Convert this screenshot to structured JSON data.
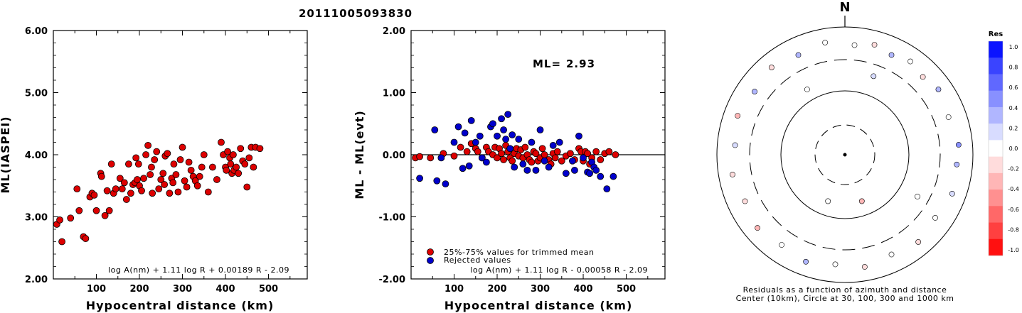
{
  "event_id": "20111005093830",
  "chart_data": [
    {
      "type": "scatter",
      "ylabel": "ML(IASPEI)",
      "xlabel": "Hypocentral distance (km)",
      "xlim": [
        0,
        590
      ],
      "ylim": [
        2.0,
        6.0
      ],
      "xticks": [
        "100",
        "200",
        "300",
        "400",
        "500"
      ],
      "yticks": [
        "2.00",
        "3.00",
        "4.00",
        "5.00",
        "6.00"
      ],
      "formula": "log A(nm) + 1.11 log R + 0.00189 R - 2.09",
      "color": "#dd0000",
      "series": [
        {
          "x": [
            8,
            15,
            20,
            40,
            55,
            60,
            70,
            75,
            85,
            90,
            95,
            100,
            110,
            112,
            120,
            125,
            130,
            135,
            140,
            145,
            155,
            160,
            165,
            170,
            175,
            180,
            185,
            190,
            192,
            195,
            198,
            200,
            205,
            210,
            215,
            220,
            225,
            228,
            230,
            235,
            240,
            245,
            250,
            255,
            258,
            260,
            265,
            270,
            275,
            278,
            280,
            285,
            290,
            295,
            300,
            305,
            310,
            315,
            320,
            325,
            330,
            335,
            340,
            345,
            350,
            360,
            370,
            380,
            390,
            395,
            400,
            402,
            405,
            410,
            412,
            415,
            418,
            420,
            425,
            430,
            435,
            440,
            445,
            450,
            455,
            460,
            465,
            470,
            480
          ],
          "y": [
            2.88,
            2.95,
            2.6,
            2.98,
            3.45,
            3.1,
            2.68,
            2.65,
            3.32,
            3.38,
            3.35,
            3.1,
            3.7,
            3.65,
            3.02,
            3.42,
            3.1,
            3.85,
            3.38,
            3.45,
            3.62,
            3.45,
            3.55,
            3.28,
            3.85,
            3.38,
            3.52,
            3.55,
            3.95,
            3.6,
            3.85,
            3.5,
            3.42,
            3.62,
            4.0,
            4.15,
            3.68,
            3.8,
            3.38,
            3.92,
            4.05,
            3.45,
            3.6,
            3.7,
            3.52,
            3.98,
            4.02,
            3.38,
            3.62,
            3.55,
            3.85,
            3.68,
            3.4,
            3.92,
            4.12,
            3.58,
            3.48,
            3.88,
            3.75,
            3.65,
            3.58,
            3.5,
            3.65,
            3.8,
            4.0,
            3.4,
            3.8,
            3.6,
            4.2,
            4.0,
            3.8,
            3.75,
            4.05,
            3.95,
            3.85,
            3.7,
            4.0,
            3.75,
            3.8,
            3.7,
            4.1,
            3.9,
            3.85,
            3.48,
            3.95,
            4.12,
            3.8,
            4.12,
            4.1
          ]
        }
      ]
    },
    {
      "type": "scatter",
      "ylabel": "ML - ML(evt)",
      "xlabel": "Hypocentral distance (km)",
      "xlim": [
        0,
        590
      ],
      "ylim": [
        -2.0,
        2.0
      ],
      "xticks": [
        "100",
        "200",
        "300",
        "400",
        "500"
      ],
      "yticks": [
        "-2.00",
        "-1.00",
        "0.00",
        "1.00",
        "2.00"
      ],
      "ml_label": "ML=",
      "ml_value": "2.93",
      "formula": "log A(nm) + 1.11 log R - 0.00058 R - 2.09",
      "legend": [
        "25%-75% values for trimmed mean",
        "Rejected values"
      ],
      "series": [
        {
          "name": "25%-75% values for trimmed mean",
          "color": "#dd0000",
          "x": [
            10,
            20,
            45,
            75,
            100,
            115,
            130,
            140,
            150,
            155,
            165,
            175,
            180,
            190,
            195,
            200,
            205,
            210,
            215,
            220,
            225,
            230,
            235,
            240,
            245,
            250,
            255,
            260,
            265,
            270,
            275,
            280,
            285,
            290,
            295,
            300,
            305,
            310,
            320,
            325,
            330,
            335,
            340,
            350,
            360,
            370,
            380,
            390,
            395,
            400,
            405,
            410,
            415,
            420,
            430,
            440,
            450,
            460,
            475
          ],
          "y": [
            -0.05,
            -0.03,
            -0.05,
            0.02,
            -0.02,
            0.12,
            0.05,
            0.18,
            0.1,
            0.05,
            -0.05,
            0.12,
            0.05,
            0.0,
            0.12,
            -0.05,
            0.1,
            0.02,
            -0.08,
            0.15,
            0.05,
            -0.05,
            -0.1,
            0.02,
            0.1,
            -0.02,
            0.08,
            -0.05,
            0.12,
            0.0,
            -0.08,
            -0.12,
            0.05,
            0.02,
            -0.1,
            -0.05,
            0.1,
            0.0,
            -0.08,
            -0.15,
            0.02,
            -0.05,
            0.05,
            -0.1,
            -0.02,
            0.02,
            -0.08,
            0.1,
            0.05,
            -0.1,
            0.05,
            0.02,
            -0.15,
            -0.05,
            0.05,
            -0.08,
            0.02,
            0.05,
            0.0
          ]
        },
        {
          "name": "Rejected values",
          "color": "#0000cc",
          "x": [
            20,
            55,
            60,
            70,
            80,
            100,
            110,
            120,
            125,
            135,
            140,
            150,
            160,
            165,
            175,
            185,
            190,
            200,
            210,
            215,
            220,
            225,
            230,
            235,
            240,
            250,
            260,
            270,
            280,
            290,
            300,
            310,
            320,
            330,
            345,
            360,
            375,
            380,
            390,
            400,
            410,
            415,
            420,
            425,
            430,
            440,
            455,
            470
          ],
          "y": [
            -0.38,
            0.4,
            -0.42,
            -0.05,
            -0.47,
            0.2,
            0.45,
            -0.22,
            0.35,
            -0.18,
            0.55,
            0.2,
            0.3,
            -0.05,
            -0.12,
            0.45,
            0.5,
            0.3,
            0.58,
            0.4,
            0.25,
            0.65,
            0.1,
            0.32,
            -0.2,
            0.25,
            -0.15,
            -0.25,
            0.2,
            -0.25,
            0.4,
            -0.1,
            -0.2,
            0.15,
            0.2,
            -0.3,
            -0.1,
            -0.25,
            0.3,
            -0.05,
            -0.28,
            -0.3,
            -0.12,
            -0.2,
            -0.25,
            -0.35,
            -0.55,
            -0.35
          ]
        }
      ]
    },
    {
      "type": "polar-scatter",
      "compass_label": "N",
      "caption_line1": "Residuals as a function of azimuth and distance",
      "caption_line2": "Center (10km), Circle at 30, 100, 300 and 1000 km",
      "colorbar_title": "Res",
      "colorbar_ticks": [
        "1.0",
        "0.8",
        "0.6",
        "0.4",
        "0.2",
        "0.0",
        "-0.2",
        "-0.4",
        "-0.6",
        "-0.8",
        "-1.0"
      ],
      "colorbar_colors": [
        "#0a14ff",
        "#3a44ff",
        "#6068ff",
        "#8890ff",
        "#b0b6ff",
        "#d8dcff",
        "#ffffff",
        "#ffdcdc",
        "#ffb6b6",
        "#ff9090",
        "#ff6868",
        "#ff4040",
        "#ff1010"
      ],
      "points": [
        {
          "az": 5,
          "dist": 520,
          "res": 0.0
        },
        {
          "az": 15,
          "dist": 600,
          "res": -0.1
        },
        {
          "az": 25,
          "dist": 520,
          "res": 0.3
        },
        {
          "az": 35,
          "dist": 600,
          "res": 0.0
        },
        {
          "az": 45,
          "dist": 520,
          "res": -0.2
        },
        {
          "az": 55,
          "dist": 600,
          "res": 0.4
        },
        {
          "az": 70,
          "dist": 520,
          "res": 0.0
        },
        {
          "az": 85,
          "dist": 600,
          "res": 0.5
        },
        {
          "az": 95,
          "dist": 560,
          "res": 0.3
        },
        {
          "az": 110,
          "dist": 600,
          "res": 0.2
        },
        {
          "az": 125,
          "dist": 520,
          "res": 0.0
        },
        {
          "az": 140,
          "dist": 600,
          "res": -0.2
        },
        {
          "az": 155,
          "dist": 520,
          "res": 0.0
        },
        {
          "az": 170,
          "dist": 600,
          "res": -0.1
        },
        {
          "az": 185,
          "dist": 520,
          "res": 0.0
        },
        {
          "az": 200,
          "dist": 600,
          "res": 0.3
        },
        {
          "az": 215,
          "dist": 520,
          "res": 0.0
        },
        {
          "az": 230,
          "dist": 600,
          "res": -0.4
        },
        {
          "az": 245,
          "dist": 520,
          "res": -0.2
        },
        {
          "az": 260,
          "dist": 600,
          "res": -0.1
        },
        {
          "az": 275,
          "dist": 520,
          "res": 0.2
        },
        {
          "az": 290,
          "dist": 600,
          "res": -0.3
        },
        {
          "az": 305,
          "dist": 520,
          "res": 0.3
        },
        {
          "az": 320,
          "dist": 600,
          "res": -0.2
        },
        {
          "az": 335,
          "dist": 520,
          "res": 0.4
        },
        {
          "az": 350,
          "dist": 600,
          "res": 0.0
        },
        {
          "az": 20,
          "dist": 200,
          "res": 0.2
        },
        {
          "az": 160,
          "dist": 60,
          "res": -0.4
        },
        {
          "az": 200,
          "dist": 60,
          "res": 0.0
        },
        {
          "az": 330,
          "dist": 150,
          "res": 0.0
        },
        {
          "az": 120,
          "dist": 200,
          "res": 0.0
        }
      ]
    }
  ]
}
